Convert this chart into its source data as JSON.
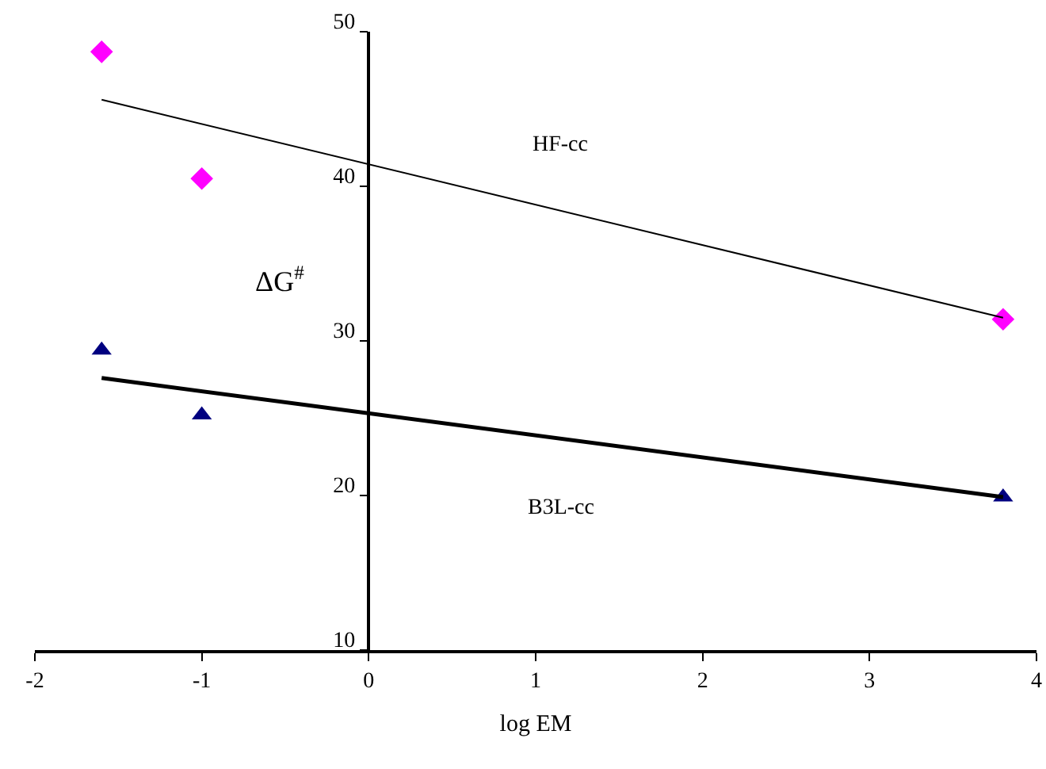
{
  "chart_data": {
    "type": "scatter",
    "xlabel": "log EM",
    "ylabel": "ΔG$^{#}$",
    "xlim": [
      -2,
      4
    ],
    "xticks": [
      -2,
      -1,
      0,
      1,
      2,
      3,
      4
    ],
    "ylim": [
      10,
      50
    ],
    "yticks": [
      10,
      20,
      30,
      40,
      50
    ],
    "grid": false,
    "series": [
      {
        "type": "scatter",
        "marker": "diamond",
        "color": "#ff00ff",
        "x": [
          -1.6,
          -1.0,
          3.8
        ],
        "values": [
          48.7,
          40.5,
          31.4
        ]
      },
      {
        "type": "scatter",
        "marker": "triangle",
        "color": "#000080",
        "x": [
          -1.6,
          -1.0,
          3.8
        ],
        "values": [
          29.4,
          25.2,
          19.9
        ]
      },
      {
        "type": "line",
        "name": "HF-cc",
        "marker": "none",
        "color": "#000000",
        "x": [
          -1.6,
          3.8
        ],
        "values": [
          45.6,
          31.5
        ]
      },
      {
        "type": "line",
        "name": "B3L-cc",
        "marker": "none",
        "color": "#000000",
        "x": [
          -1.6,
          3.8
        ],
        "values": [
          27.6,
          19.9
        ]
      }
    ]
  }
}
